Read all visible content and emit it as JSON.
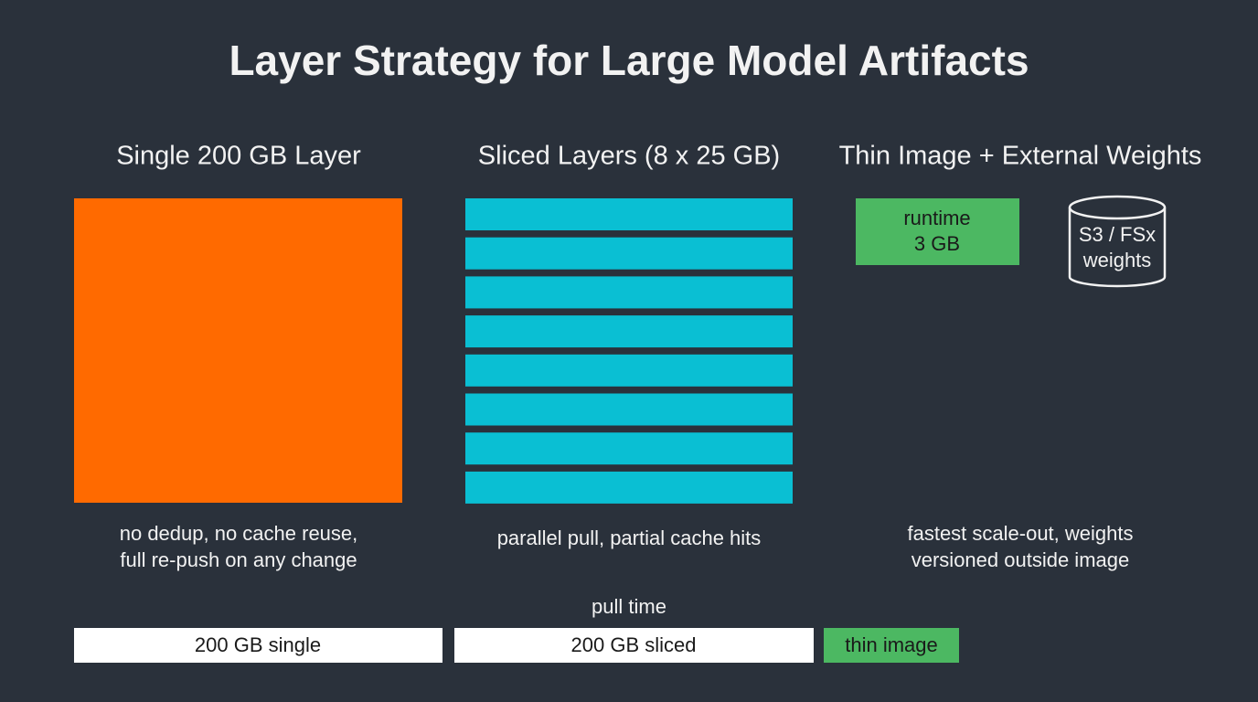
{
  "title": "Layer Strategy for Large Model Artifacts",
  "columns": [
    {
      "heading": "Single 200 GB Layer",
      "caption": [
        "no dedup, no cache reuse,",
        "full re-push on any change"
      ]
    },
    {
      "heading": "Sliced Layers (8 x 25 GB)",
      "caption": [
        "parallel pull, partial cache hits"
      ]
    },
    {
      "heading": "Thin Image + External Weights",
      "caption": [
        "fastest scale-out, weights",
        "versioned outside image"
      ]
    }
  ],
  "runtime_box": [
    "runtime",
    "3 GB"
  ],
  "weights_store": [
    "S3 / FSx",
    "weights"
  ],
  "pull_time": {
    "label": "pull time",
    "bars": [
      "200 GB single",
      "200 GB sliced",
      "thin image"
    ]
  }
}
